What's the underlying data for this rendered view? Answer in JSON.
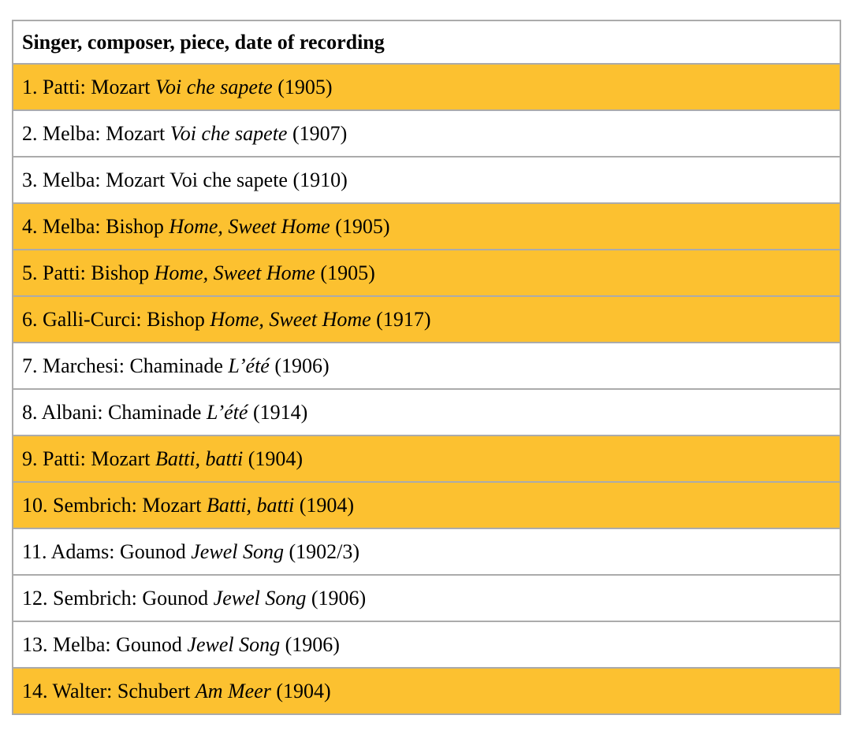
{
  "table": {
    "header": "Singer, composer, piece, date of recording",
    "rows": [
      {
        "prefix": "1. Patti: Mozart ",
        "piece": "Voi che sapete",
        "piece_italic": true,
        "suffix": " (1905)",
        "highlighted": true
      },
      {
        "prefix": "2. Melba: Mozart ",
        "piece": "Voi che sapete",
        "piece_italic": true,
        "suffix": " (1907)",
        "highlighted": false
      },
      {
        "prefix": "3. Melba: Mozart ",
        "piece": "Voi che sapete",
        "piece_italic": false,
        "suffix": " (1910)",
        "highlighted": false
      },
      {
        "prefix": "4. Melba: Bishop ",
        "piece": "Home, Sweet Home",
        "piece_italic": true,
        "suffix": " (1905)",
        "highlighted": true
      },
      {
        "prefix": "5. Patti: Bishop ",
        "piece": "Home, Sweet Home",
        "piece_italic": true,
        "suffix": " (1905)",
        "highlighted": true
      },
      {
        "prefix": "6. Galli-Curci: Bishop ",
        "piece": "Home, Sweet Home",
        "piece_italic": true,
        "suffix": " (1917)",
        "highlighted": true
      },
      {
        "prefix": "7. Marchesi: Chaminade ",
        "piece": "L’été",
        "piece_italic": true,
        "suffix": " (1906)",
        "highlighted": false
      },
      {
        "prefix": "8. Albani: Chaminade ",
        "piece": "L’été",
        "piece_italic": true,
        "suffix": " (1914)",
        "highlighted": false
      },
      {
        "prefix": "9. Patti: Mozart ",
        "piece": "Batti, batti",
        "piece_italic": true,
        "suffix": " (1904)",
        "highlighted": true
      },
      {
        "prefix": "10. Sembrich: Mozart ",
        "piece": "Batti, batti",
        "piece_italic": true,
        "suffix": " (1904)",
        "highlighted": true
      },
      {
        "prefix": "11. Adams: Gounod ",
        "piece": "Jewel Song",
        "piece_italic": true,
        "suffix": " (1902/3)",
        "highlighted": false
      },
      {
        "prefix": "12. Sembrich: Gounod ",
        "piece": "Jewel Song",
        "piece_italic": true,
        "suffix": " (1906)",
        "highlighted": false
      },
      {
        "prefix": "13. Melba: Gounod ",
        "piece": "Jewel Song",
        "piece_italic": true,
        "suffix": " (1906)",
        "highlighted": false
      },
      {
        "prefix": "14. Walter: Schubert ",
        "piece": "Am Meer",
        "piece_italic": true,
        "suffix": " (1904)",
        "highlighted": true
      }
    ]
  },
  "colors": {
    "highlight": "#fcc130",
    "inner_border": "#ababab",
    "outer_border": "#9a9a9a",
    "text": "#000000",
    "background": "#ffffff"
  }
}
